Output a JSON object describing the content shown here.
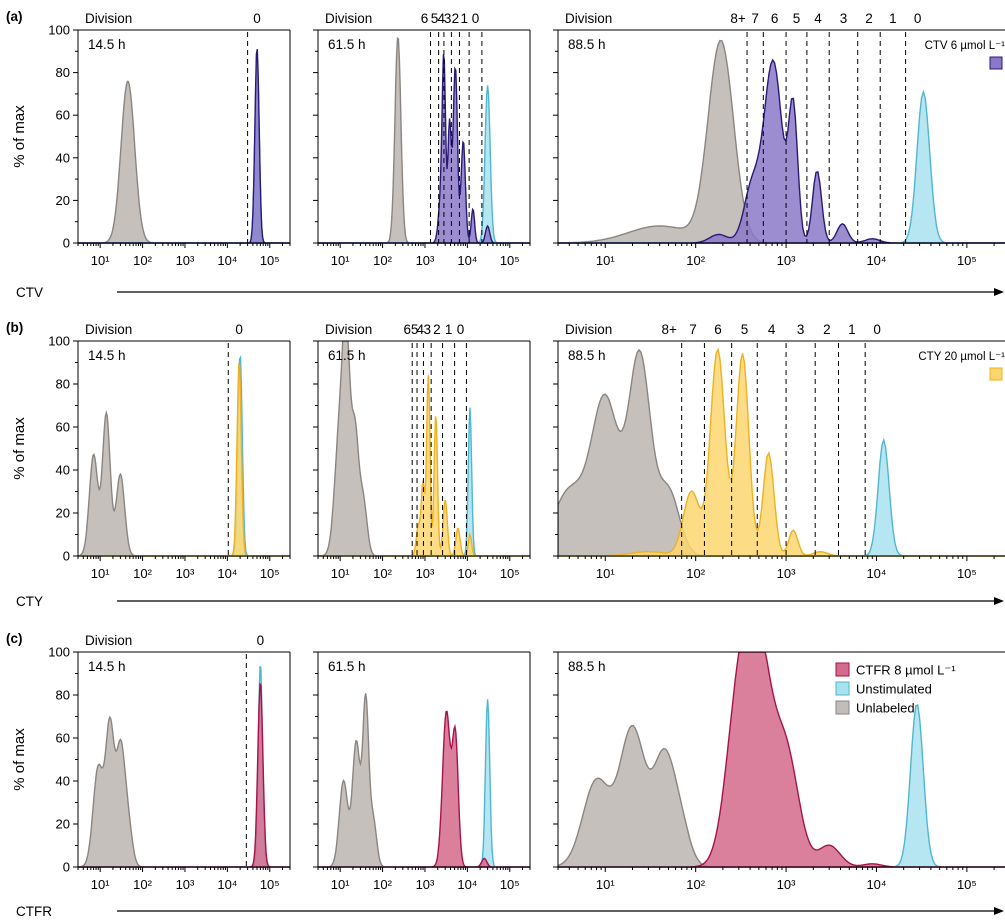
{
  "figure": {
    "rows": [
      {
        "label": "(a)",
        "dye": "CTV",
        "ylabel": "% of max",
        "legend": "CTV 6 µmol L⁻¹",
        "fill": "#8b78c8",
        "stroke": "#2a1a78",
        "division_word": "Division",
        "panels": [
          {
            "time": "14.5 h",
            "divisions": [
              "0"
            ]
          },
          {
            "time": "61.5 h",
            "divisions": [
              "6",
              "5",
              "4",
              "3",
              "2",
              "1",
              "0"
            ]
          },
          {
            "time": "88.5 h",
            "divisions": [
              "8+",
              "7",
              "6",
              "5",
              "4",
              "3",
              "2",
              "1",
              "0"
            ]
          }
        ]
      },
      {
        "label": "(b)",
        "dye": "CTY",
        "ylabel": "% of max",
        "legend": "CTY 20 µmol L⁻¹",
        "fill": "#fcd66e",
        "stroke": "#f0b020",
        "division_word": "Division",
        "panels": [
          {
            "time": "14.5 h",
            "divisions": [
              "0"
            ]
          },
          {
            "time": "61.5 h",
            "divisions": [
              "6",
              "5",
              "4",
              "3",
              "2",
              "1",
              "0"
            ]
          },
          {
            "time": "88.5 h",
            "divisions": [
              "8+",
              "7",
              "6",
              "5",
              "4",
              "3",
              "2",
              "1",
              "0"
            ]
          }
        ]
      },
      {
        "label": "(c)",
        "dye": "CTFR",
        "ylabel": "% of max",
        "legend": "CTFR 8 µmol L⁻¹",
        "fill": "#d46a8c",
        "stroke": "#a8124a",
        "division_word": "Division",
        "panels": [
          {
            "time": "14.5 h",
            "divisions": [
              "0"
            ]
          },
          {
            "time": "61.5 h",
            "divisions": []
          },
          {
            "time": "88.5 h",
            "divisions": []
          }
        ]
      }
    ],
    "legend_common": [
      {
        "name": "Unstimulated",
        "fill": "#a8e2ee",
        "stroke": "#4fb7d2"
      },
      {
        "name": "Unlabeled",
        "fill": "#c2bdb8",
        "stroke": "#8a8580"
      }
    ]
  },
  "chart_data": {
    "type": "area",
    "xscale": "log",
    "ylim": [
      0,
      100
    ],
    "yticks": [
      "0",
      "20",
      "40",
      "60",
      "80",
      "100"
    ],
    "xticks": [
      "10¹",
      "10²",
      "10³",
      "10⁴",
      "10⁵"
    ],
    "panels": [
      {
        "row": "a",
        "time": "14.5 h",
        "xlim": [
          3,
          300000
        ],
        "dashed": [
          30000
        ],
        "series": [
          {
            "name": "Unlabeled",
            "peaks": [
              [
                45,
                76,
                0.16
              ]
            ]
          },
          {
            "name": "Unstimulated",
            "peaks": [
              [
                50000,
                88,
                0.05
              ]
            ]
          },
          {
            "name": "CTV 6 µmol L⁻¹",
            "peaks": [
              [
                50000,
                92,
                0.05
              ]
            ]
          }
        ]
      },
      {
        "row": "a",
        "time": "61.5 h",
        "xlim": [
          3,
          300000
        ],
        "dashed": [
          1350,
          2100,
          2800,
          4200,
          6500,
          11000,
          22000
        ],
        "series": [
          {
            "name": "Unlabeled",
            "peaks": [
              [
                230,
                97,
                0.07
              ]
            ]
          },
          {
            "name": "Unstimulated",
            "peaks": [
              [
                30000,
                74,
                0.06
              ]
            ]
          },
          {
            "name": "CTV 6 µmol L⁻¹",
            "peaks": [
              [
                2400,
                21,
                0.06
              ],
              [
                2800,
                78,
                0.04
              ],
              [
                3800,
                56,
                0.04
              ],
              [
                5200,
                83,
                0.05
              ],
              [
                8000,
                48,
                0.05
              ],
              [
                13500,
                16,
                0.04
              ],
              [
                30000,
                8,
                0.05
              ]
            ]
          }
        ]
      },
      {
        "row": "a",
        "time": "88.5 h",
        "xlim": [
          3,
          300000
        ],
        "dashed": [
          370,
          560,
          1000,
          1700,
          3000,
          6200,
          11000,
          21000
        ],
        "series": [
          {
            "name": "Unlabeled",
            "peaks": [
              [
                190,
                94,
                0.14
              ],
              [
                40,
                8,
                0.35
              ]
            ]
          },
          {
            "name": "Unstimulated",
            "peaks": [
              [
                33000,
                71,
                0.07
              ]
            ]
          },
          {
            "name": "CTV 6 µmol L⁻¹",
            "peaks": [
              [
                180,
                4,
                0.1
              ],
              [
                420,
                26,
                0.09
              ],
              [
                720,
                85,
                0.1
              ],
              [
                1200,
                61,
                0.05
              ],
              [
                2200,
                34,
                0.05
              ],
              [
                4200,
                9,
                0.06
              ],
              [
                9000,
                2,
                0.08
              ]
            ]
          }
        ]
      },
      {
        "row": "b",
        "time": "14.5 h",
        "xlim": [
          3,
          300000
        ],
        "dashed": [
          10500
        ],
        "series": [
          {
            "name": "Unlabeled",
            "peaks": [
              [
                7,
                47,
                0.1
              ],
              [
                14,
                66,
                0.09
              ],
              [
                30,
                38,
                0.1
              ]
            ]
          },
          {
            "name": "Unstimulated",
            "peaks": [
              [
                20000,
                94,
                0.05
              ]
            ]
          },
          {
            "name": "CTY 20 µmol L⁻¹",
            "peaks": [
              [
                19000,
                91,
                0.05
              ]
            ]
          }
        ]
      },
      {
        "row": "b",
        "time": "61.5 h",
        "xlim": [
          3,
          300000
        ],
        "dashed": [
          500,
          650,
          920,
          1400,
          2600,
          5000,
          9500
        ]
      },
      {
        "row": "b",
        "time": "88.5 h",
        "xlim": [
          3,
          300000
        ],
        "dashed": [
          70,
          125,
          250,
          480,
          1000,
          2100,
          3800,
          7500
        ]
      },
      {
        "row": "c",
        "time": "14.5 h",
        "xlim": [
          3,
          300000
        ],
        "dashed": [
          28000
        ]
      },
      {
        "row": "c",
        "time": "61.5 h",
        "xlim": [
          3,
          300000
        ],
        "dashed": []
      },
      {
        "row": "c",
        "time": "88.5 h",
        "xlim": [
          3,
          300000
        ],
        "dashed": []
      }
    ],
    "series_peaks": {
      "b-61.5 h": [
        {
          "name": "Unlabeled",
          "peaks": [
            [
              10,
              62,
              0.12
            ],
            [
              14,
              80,
              0.08
            ],
            [
              22,
              58,
              0.09
            ],
            [
              35,
              25,
              0.09
            ]
          ]
        },
        {
          "name": "Unstimulated",
          "peaks": [
            [
              11500,
              69,
              0.04
            ]
          ]
        },
        {
          "name": "CTY 20 µmol L⁻¹",
          "peaks": [
            [
              700,
              14,
              0.05
            ],
            [
              900,
              33,
              0.04
            ],
            [
              1200,
              84,
              0.04
            ],
            [
              1800,
              66,
              0.04
            ],
            [
              3000,
              26,
              0.05
            ],
            [
              6000,
              13,
              0.05
            ],
            [
              11500,
              10,
              0.04
            ]
          ]
        }
      ],
      "b-88.5 h": [
        {
          "name": "Unlabeled",
          "peaks": [
            [
              4,
              30,
              0.18
            ],
            [
              10,
              72,
              0.15
            ],
            [
              24,
              92,
              0.12
            ],
            [
              50,
              30,
              0.12
            ]
          ]
        },
        {
          "name": "Unstimulated",
          "peaks": [
            [
              12000,
              54,
              0.06
            ]
          ]
        },
        {
          "name": "CTY 20 µmol L⁻¹",
          "peaks": [
            [
              30,
              2,
              0.2
            ],
            [
              90,
              30,
              0.09
            ],
            [
              175,
              96,
              0.08
            ],
            [
              330,
              94,
              0.07
            ],
            [
              640,
              48,
              0.06
            ],
            [
              1200,
              12,
              0.05
            ],
            [
              2400,
              2,
              0.08
            ]
          ]
        }
      ],
      "c-14.5 h": [
        {
          "name": "Unlabeled",
          "peaks": [
            [
              9,
              46,
              0.12
            ],
            [
              17,
              64,
              0.1
            ],
            [
              30,
              52,
              0.1
            ],
            [
              45,
              20,
              0.1
            ]
          ]
        },
        {
          "name": "Unstimulated",
          "peaks": [
            [
              60000,
              95,
              0.05
            ]
          ]
        },
        {
          "name": "CTFR 8 µmol L⁻¹",
          "peaks": [
            [
              60000,
              86,
              0.06
            ]
          ]
        }
      ],
      "c-61.5 h": [
        {
          "name": "Unlabeled",
          "peaks": [
            [
              12,
              40,
              0.1
            ],
            [
              24,
              58,
              0.09
            ],
            [
              40,
              76,
              0.07
            ],
            [
              60,
              22,
              0.08
            ]
          ]
        },
        {
          "name": "Unstimulated",
          "peaks": [
            [
              30000,
              78,
              0.05
            ]
          ]
        },
        {
          "name": "CTFR 8 µmol L⁻¹",
          "peaks": [
            [
              3200,
              72,
              0.09
            ],
            [
              5200,
              60,
              0.07
            ],
            [
              25000,
              4,
              0.06
            ]
          ]
        }
      ],
      "c-88.5 h": [
        {
          "name": "Unlabeled",
          "peaks": [
            [
              8,
              40,
              0.15
            ],
            [
              20,
              64,
              0.14
            ],
            [
              45,
              50,
              0.12
            ],
            [
              70,
              15,
              0.1
            ]
          ]
        },
        {
          "name": "Unstimulated",
          "peaks": [
            [
              28000,
              76,
              0.07
            ]
          ]
        },
        {
          "name": "CTFR 8 µmol L⁻¹",
          "peaks": [
            [
              300,
              74,
              0.14
            ],
            [
              500,
              90,
              0.14
            ],
            [
              1000,
              52,
              0.14
            ],
            [
              3000,
              10,
              0.12
            ],
            [
              9000,
              1.5,
              0.1
            ]
          ]
        }
      ]
    }
  }
}
